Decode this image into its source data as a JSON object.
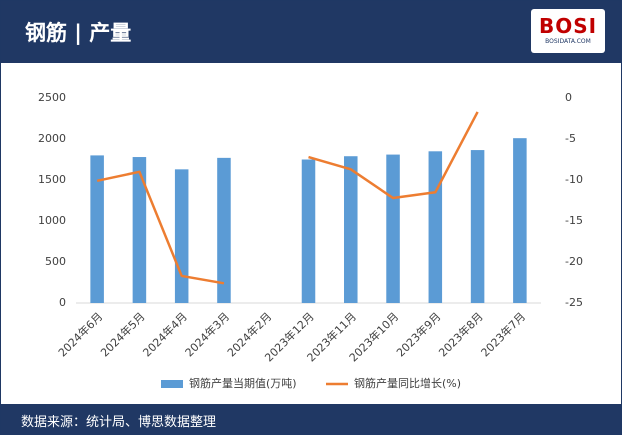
{
  "header": {
    "title": "钢筋 | 产量",
    "logo": "BOSI",
    "logo_sub": "BOSIDATA.COM"
  },
  "chart_data": {
    "type": "bar-line",
    "categories": [
      "2024年6月",
      "2024年5月",
      "2024年4月",
      "2024年3月",
      "2024年2月",
      "2023年12月",
      "2023年11月",
      "2023年10月",
      "2023年9月",
      "2023年8月",
      "2023年7月"
    ],
    "series": [
      {
        "name": "钢筋产量当期值(万吨)",
        "color": "#5b9bd5",
        "type": "bar",
        "values": [
          1800,
          1780,
          1630,
          1770,
          null,
          1750,
          1790,
          1810,
          1850,
          1865,
          2010
        ]
      },
      {
        "name": "钢筋产量同比增长(%)",
        "color": "#ed7d31",
        "type": "line",
        "axis": "y2",
        "values": [
          -10.1,
          -9.0,
          -21.7,
          -22.6,
          null,
          -7.2,
          -8.7,
          -12.2,
          -11.5,
          -1.7,
          null
        ]
      }
    ],
    "ylim": [
      0,
      2500
    ],
    "yticks": [
      0,
      500,
      1000,
      1500,
      2000,
      2500
    ],
    "y2lim": [
      -25,
      0
    ],
    "y2ticks": [
      -25,
      -20,
      -15,
      -10,
      -5,
      0
    ]
  },
  "footer": {
    "source": "数据来源：统计局、博思数据整理"
  }
}
